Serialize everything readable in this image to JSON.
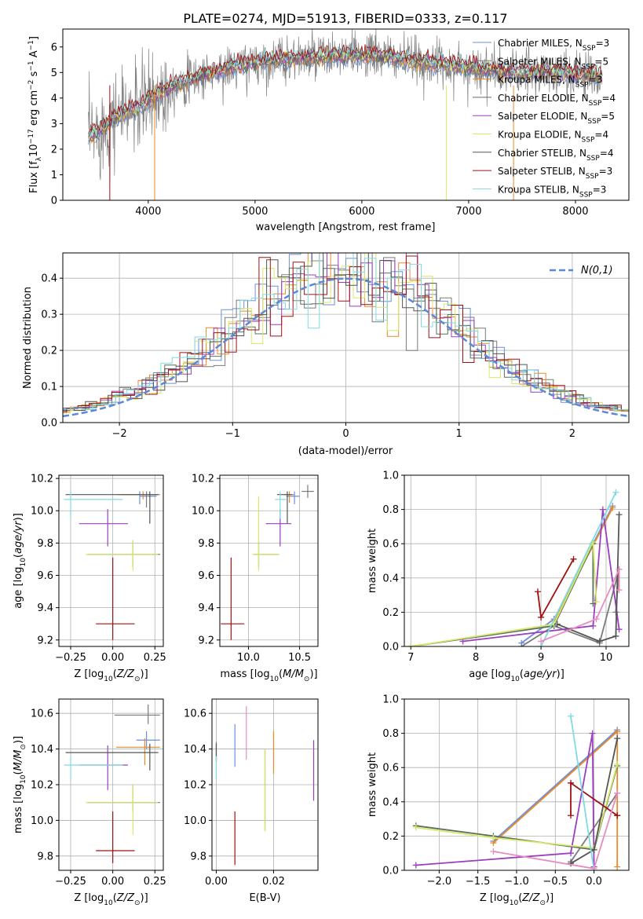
{
  "figure_title": "PLATE=0274, MJD=51913, FIBERID=0333, z=0.117",
  "colors": {
    "Chabrier MILES": "#6a8fdc",
    "Salpeter MILES": "#7a7a7a",
    "Kroupa MILES": "#e8892a",
    "Chabrier ELODIE": "#5c6e5c",
    "Salpeter ELODIE": "#9b3dbf",
    "Kroupa ELODIE": "#d7e86a",
    "Chabrier STELIB": "#555555",
    "Salpeter STELIB": "#a01010",
    "Kroupa STELIB": "#7fdbe0",
    "gaussian": "#5b88d8"
  },
  "chart_data": [
    {
      "id": "spectrum",
      "type": "line",
      "xlabel": "wavelength [Angstrom, rest frame]",
      "ylabel": "Flux [f_λ 10^-17 erg cm^-2 s^-1 A^-1]",
      "xlim": [
        3200,
        8500
      ],
      "ylim": [
        0,
        6.7
      ],
      "xticks": [
        4000,
        5000,
        6000,
        7000,
        8000
      ],
      "yticks": [
        0,
        1,
        2,
        3,
        4,
        5,
        6
      ],
      "legend_position": "right",
      "legend": [
        {
          "name": "Chabrier MILES",
          "nssp": "3"
        },
        {
          "name": "Salpeter MILES",
          "nssp": "5"
        },
        {
          "name": "Kroupa MILES",
          "nssp": "3"
        },
        {
          "name": "Chabrier ELODIE",
          "nssp": "4"
        },
        {
          "name": "Salpeter ELODIE",
          "nssp": "5"
        },
        {
          "name": "Kroupa ELODIE",
          "nssp": "4"
        },
        {
          "name": "Chabrier STELIB",
          "nssp": "4"
        },
        {
          "name": "Salpeter STELIB",
          "nssp": "3"
        },
        {
          "name": "Kroupa STELIB",
          "nssp": "3"
        }
      ],
      "continuum": {
        "x": [
          3400,
          3500,
          3600,
          3700,
          3800,
          3900,
          4000,
          4100,
          4200,
          4300,
          4400,
          4500,
          4600,
          4700,
          4800,
          4900,
          5000,
          5200,
          5400,
          5600,
          5800,
          6000,
          6200,
          6400,
          6600,
          6800,
          7000,
          7200,
          7400,
          7600,
          7800,
          8000,
          8200
        ],
        "y": [
          2.4,
          2.6,
          2.9,
          3.3,
          3.5,
          3.6,
          3.9,
          4.2,
          4.4,
          4.6,
          4.7,
          4.9,
          5.0,
          5.1,
          5.2,
          5.3,
          5.4,
          5.5,
          5.55,
          5.6,
          5.65,
          5.7,
          5.65,
          5.5,
          5.4,
          5.3,
          5.2,
          5.1,
          5.0,
          5.0,
          5.0,
          4.95,
          4.9
        ]
      }
    },
    {
      "id": "residuals",
      "type": "line",
      "xlabel": "(data-model)/error",
      "ylabel": "Normed distribution",
      "xlim": [
        -2.5,
        2.5
      ],
      "ylim": [
        0,
        0.47
      ],
      "xticks": [
        -2,
        -1,
        0,
        1,
        2
      ],
      "yticks": [
        0.0,
        0.1,
        0.2,
        0.3,
        0.4
      ],
      "legend_label": "N(0,1)",
      "legend_position": "top-right",
      "gaussian": {
        "mu": 0,
        "sigma": 1
      }
    },
    {
      "id": "age_vs_Z",
      "type": "scatter",
      "xlabel": "Z [log10(Z/Z⊙)]",
      "ylabel": "age [log10(age/yr)]",
      "xlim": [
        -0.32,
        0.3
      ],
      "ylim": [
        9.16,
        10.22
      ],
      "xticks": [
        -0.25,
        0.0,
        0.25
      ],
      "yticks": [
        9.2,
        9.4,
        9.6,
        9.8,
        10.0,
        10.2
      ],
      "points": [
        {
          "series": "Chabrier MILES",
          "x": 0.16,
          "y": 10.09,
          "xerr": [
            0.0,
            0.1
          ],
          "yerr": [
            0.05,
            0.03
          ]
        },
        {
          "series": "Salpeter MILES",
          "x": 0.2,
          "y": 10.1,
          "xerr": [
            0.15,
            0.08
          ],
          "yerr": [
            0.08,
            0.02
          ]
        },
        {
          "series": "Kroupa MILES",
          "x": 0.18,
          "y": 10.1,
          "xerr": [
            0.15,
            0.1
          ],
          "yerr": [
            0.03,
            0.02
          ]
        },
        {
          "series": "Chabrier ELODIE",
          "x": 0.12,
          "y": 9.73,
          "xerr": [
            0.27,
            0.16
          ],
          "yerr": [
            0.08,
            0.08
          ]
        },
        {
          "series": "Salpeter ELODIE",
          "x": -0.03,
          "y": 9.92,
          "xerr": [
            0.17,
            0.12
          ],
          "yerr": [
            0.14,
            0.09
          ]
        },
        {
          "series": "Kroupa ELODIE",
          "x": 0.12,
          "y": 9.73,
          "xerr": [
            0.28,
            0.15
          ],
          "yerr": [
            0.1,
            0.09
          ]
        },
        {
          "series": "Chabrier STELIB",
          "x": 0.22,
          "y": 10.1,
          "xerr": [
            0.5,
            0.05
          ],
          "yerr": [
            0.18,
            0.02
          ]
        },
        {
          "series": "Salpeter STELIB",
          "x": 0.0,
          "y": 9.3,
          "xerr": [
            0.1,
            0.13
          ],
          "yerr": [
            0.1,
            0.41
          ]
        },
        {
          "series": "Kroupa STELIB",
          "x": -0.25,
          "y": 10.07,
          "xerr": [
            0.04,
            0.31
          ],
          "yerr": [
            0.12,
            0.05
          ]
        }
      ]
    },
    {
      "id": "age_vs_mass",
      "type": "scatter",
      "xlabel": "mass [log10(M/M⊙)]",
      "ylabel": "",
      "xlim": [
        9.72,
        10.68
      ],
      "ylim": [
        9.16,
        10.22
      ],
      "xticks": [
        10.0,
        10.5
      ],
      "yticks": [
        9.2,
        9.4,
        9.6,
        9.8,
        10.0,
        10.2
      ],
      "points": [
        {
          "series": "Chabrier MILES",
          "x": 10.45,
          "y": 10.09,
          "xerr": [
            0.08,
            0.05
          ],
          "yerr": [
            0.05,
            0.03
          ]
        },
        {
          "series": "Salpeter MILES",
          "x": 10.58,
          "y": 10.12,
          "xerr": [
            0.06,
            0.06
          ],
          "yerr": [
            0.04,
            0.04
          ]
        },
        {
          "series": "Kroupa MILES",
          "x": 10.4,
          "y": 10.1,
          "xerr": [
            0.05,
            0.05
          ],
          "yerr": [
            0.05,
            0.02
          ]
        },
        {
          "series": "Chabrier ELODIE",
          "x": 10.1,
          "y": 9.73,
          "xerr": [
            0.05,
            0.2
          ],
          "yerr": [
            0.08,
            0.08
          ]
        },
        {
          "series": "Salpeter ELODIE",
          "x": 10.31,
          "y": 9.92,
          "xerr": [
            0.14,
            0.11
          ],
          "yerr": [
            0.14,
            0.09
          ]
        },
        {
          "series": "Kroupa ELODIE",
          "x": 10.1,
          "y": 9.73,
          "xerr": [
            0.06,
            0.2
          ],
          "yerr": [
            0.1,
            0.36
          ]
        },
        {
          "series": "Chabrier STELIB",
          "x": 10.38,
          "y": 10.1,
          "xerr": [
            0.1,
            0.05
          ],
          "yerr": [
            0.18,
            0.02
          ]
        },
        {
          "series": "Salpeter STELIB",
          "x": 9.83,
          "y": 9.3,
          "xerr": [
            0.1,
            0.13
          ],
          "yerr": [
            0.1,
            0.41
          ]
        },
        {
          "series": "Kroupa STELIB",
          "x": 10.31,
          "y": 10.07,
          "xerr": [
            0.05,
            0.06
          ],
          "yerr": [
            0.12,
            0.05
          ]
        }
      ]
    },
    {
      "id": "weight_vs_age",
      "type": "line",
      "xlabel": "age [log10(age/yr)]",
      "ylabel": "mass weight",
      "xlim": [
        6.9,
        10.35
      ],
      "ylim": [
        0,
        1.0
      ],
      "xticks": [
        7,
        8,
        9,
        10
      ],
      "yticks": [
        0.0,
        0.2,
        0.4,
        0.6,
        0.8,
        1.0
      ],
      "series": [
        {
          "name": "Chabrier MILES",
          "x": [
            8.7,
            9.2,
            10.1
          ],
          "y": [
            0.02,
            0.16,
            0.82
          ]
        },
        {
          "name": "Salpeter MILES",
          "x": [
            8.7,
            9.2,
            9.9,
            10.2,
            10.15
          ],
          "y": [
            0.0,
            0.12,
            0.02,
            0.45,
            0.2
          ]
        },
        {
          "name": "Kroupa MILES",
          "x": [
            9.2,
            10.1
          ],
          "y": [
            0.15,
            0.81
          ]
        },
        {
          "name": "Chabrier ELODIE",
          "x": [
            7.0,
            9.2,
            9.8,
            9.8
          ],
          "y": [
            0.0,
            0.12,
            0.6,
            0.25
          ]
        },
        {
          "name": "Salpeter ELODIE",
          "x": [
            7.8,
            9.8,
            9.95,
            10.2
          ],
          "y": [
            0.03,
            0.12,
            0.8,
            0.1
          ]
        },
        {
          "name": "Kroupa ELODIE",
          "x": [
            7.0,
            9.2,
            9.8,
            9.85
          ],
          "y": [
            0.0,
            0.13,
            0.61,
            0.26
          ]
        },
        {
          "name": "Chabrier STELIB",
          "x": [
            9.25,
            9.9,
            10.15,
            10.2
          ],
          "y": [
            0.13,
            0.03,
            0.06,
            0.77
          ]
        },
        {
          "name": "Salpeter STELIB",
          "x": [
            8.95,
            9.0,
            9.5
          ],
          "y": [
            0.32,
            0.17,
            0.51
          ]
        },
        {
          "name": "Kroupa STELIB",
          "x": [
            9.0,
            10.15
          ],
          "y": [
            0.0,
            0.9
          ]
        },
        {
          "name": "Pink",
          "x": [
            9.0,
            9.85,
            10.2,
            10.2
          ],
          "y": [
            0.03,
            0.16,
            0.45,
            0.33
          ]
        }
      ]
    },
    {
      "id": "mass_vs_Z",
      "type": "scatter",
      "xlabel": "Z [log10(Z/Z⊙)]",
      "ylabel": "mass [log10(M/M⊙)]",
      "xlim": [
        -0.32,
        0.3
      ],
      "ylim": [
        9.72,
        10.68
      ],
      "xticks": [
        -0.25,
        0.0,
        0.25
      ],
      "yticks": [
        9.8,
        10.0,
        10.2,
        10.4,
        10.6
      ],
      "points": [
        {
          "series": "Chabrier MILES",
          "x": 0.2,
          "y": 10.45,
          "xerr": [
            0.06,
            0.08
          ],
          "yerr": [
            0.05,
            0.05
          ]
        },
        {
          "series": "Salpeter MILES",
          "x": 0.21,
          "y": 10.59,
          "xerr": [
            0.2,
            0.07
          ],
          "yerr": [
            0.05,
            0.06
          ]
        },
        {
          "series": "Kroupa MILES",
          "x": 0.19,
          "y": 10.41,
          "xerr": [
            0.17,
            0.09
          ],
          "yerr": [
            0.1,
            0.05
          ]
        },
        {
          "series": "Chabrier ELODIE",
          "x": 0.12,
          "y": 10.1,
          "xerr": [
            0.27,
            0.16
          ],
          "yerr": [
            0.05,
            0.1
          ]
        },
        {
          "series": "Salpeter ELODIE",
          "x": -0.03,
          "y": 10.31,
          "xerr": [
            0.17,
            0.12
          ],
          "yerr": [
            0.14,
            0.11
          ]
        },
        {
          "series": "Kroupa ELODIE",
          "x": 0.12,
          "y": 10.1,
          "xerr": [
            0.28,
            0.15
          ],
          "yerr": [
            0.18,
            0.1
          ]
        },
        {
          "series": "Chabrier STELIB",
          "x": 0.22,
          "y": 10.38,
          "xerr": [
            0.5,
            0.05
          ],
          "yerr": [
            0.1,
            0.05
          ]
        },
        {
          "series": "Salpeter STELIB",
          "x": 0.0,
          "y": 9.83,
          "xerr": [
            0.1,
            0.13
          ],
          "yerr": [
            0.07,
            0.22
          ]
        },
        {
          "series": "Kroupa STELIB",
          "x": -0.25,
          "y": 10.31,
          "xerr": [
            0.04,
            0.31
          ],
          "yerr": [
            0.08,
            0.05
          ]
        }
      ]
    },
    {
      "id": "mass_vs_EBV",
      "type": "scatter",
      "xlabel": "E(B-V)",
      "ylabel": "",
      "xlim": [
        -0.0015,
        0.0355
      ],
      "ylim": [
        9.72,
        10.68
      ],
      "xticks": [
        0.0,
        0.02
      ],
      "ytick_labels": [
        "0.00",
        "0.02"
      ],
      "yticks": [
        9.8,
        10.0,
        10.2,
        10.4,
        10.6
      ],
      "points": [
        {
          "series": "Chabrier MILES",
          "x": 0.0065,
          "y": 10.42,
          "yerr": [
            0.12,
            0.12
          ]
        },
        {
          "series": "Salpeter MILES",
          "x": 0.0,
          "y": 10.38,
          "yerr": [
            0.05,
            0.06
          ]
        },
        {
          "series": "Kroupa MILES",
          "x": 0.02,
          "y": 10.38,
          "yerr": [
            0.12,
            0.12
          ]
        },
        {
          "series": "Chabrier ELODIE",
          "x": 0.017,
          "y": 10.17,
          "yerr": [
            0.23,
            0.23
          ]
        },
        {
          "series": "Salpeter ELODIE",
          "x": 0.034,
          "y": 10.28,
          "yerr": [
            0.17,
            0.17
          ]
        },
        {
          "series": "Kroupa ELODIE",
          "x": 0.017,
          "y": 10.17,
          "yerr": [
            0.23,
            0.23
          ]
        },
        {
          "series": "Chabrier STELIB",
          "x": 0.0,
          "y": 10.38,
          "yerr": [
            0.05,
            0.05
          ]
        },
        {
          "series": "Salpeter STELIB",
          "x": 0.0065,
          "y": 9.9,
          "yerr": [
            0.15,
            0.15
          ]
        },
        {
          "series": "Kroupa STELIB",
          "x": 0.0,
          "y": 10.31,
          "yerr": [
            0.08,
            0.05
          ]
        },
        {
          "series": "Pink",
          "x": 0.0105,
          "y": 10.49,
          "yerr": [
            0.15,
            0.15
          ]
        }
      ]
    },
    {
      "id": "weight_vs_Z",
      "type": "line",
      "xlabel": "Z [log10(Z/Z⊙)]",
      "ylabel": "mass weight",
      "xlim": [
        -2.45,
        0.45
      ],
      "ylim": [
        0,
        1.0
      ],
      "xticks": [
        -2.0,
        -1.5,
        -1.0,
        -0.5,
        0.0
      ],
      "yticks": [
        0.0,
        0.2,
        0.4,
        0.6,
        0.8,
        1.0
      ],
      "series": [
        {
          "name": "Chabrier MILES",
          "x": [
            -1.3,
            0.3
          ],
          "y": [
            0.17,
            0.82
          ]
        },
        {
          "name": "Salpeter MILES",
          "x": [
            -0.3,
            0.3
          ],
          "y": [
            0.05,
            0.45
          ]
        },
        {
          "name": "Kroupa MILES",
          "x": [
            -1.3,
            0.3,
            0.3
          ],
          "y": [
            0.16,
            0.81,
            0.02
          ]
        },
        {
          "name": "Chabrier ELODIE",
          "x": [
            -2.3,
            -1.3,
            0.0,
            0.3
          ],
          "y": [
            0.26,
            0.2,
            0.12,
            0.61
          ]
        },
        {
          "name": "Salpeter ELODIE",
          "x": [
            -2.3,
            -0.3,
            -0.02,
            0.0
          ],
          "y": [
            0.03,
            0.1,
            0.8,
            0.02
          ]
        },
        {
          "name": "Kroupa ELODIE",
          "x": [
            -2.3,
            -1.3,
            0.0,
            0.3
          ],
          "y": [
            0.25,
            0.19,
            0.13,
            0.62
          ]
        },
        {
          "name": "Chabrier STELIB",
          "x": [
            -0.3,
            0.0,
            0.3
          ],
          "y": [
            0.04,
            0.12,
            0.77
          ]
        },
        {
          "name": "Salpeter STELIB",
          "x": [
            -0.3,
            -0.3,
            0.3,
            0.3
          ],
          "y": [
            0.32,
            0.51,
            0.32,
            0.32
          ]
        },
        {
          "name": "Kroupa STELIB",
          "x": [
            -0.3,
            0.0
          ],
          "y": [
            0.9,
            0.0
          ]
        },
        {
          "name": "Pink",
          "x": [
            -1.3,
            0.0,
            0.3
          ],
          "y": [
            0.11,
            0.01,
            0.45
          ]
        }
      ]
    }
  ]
}
